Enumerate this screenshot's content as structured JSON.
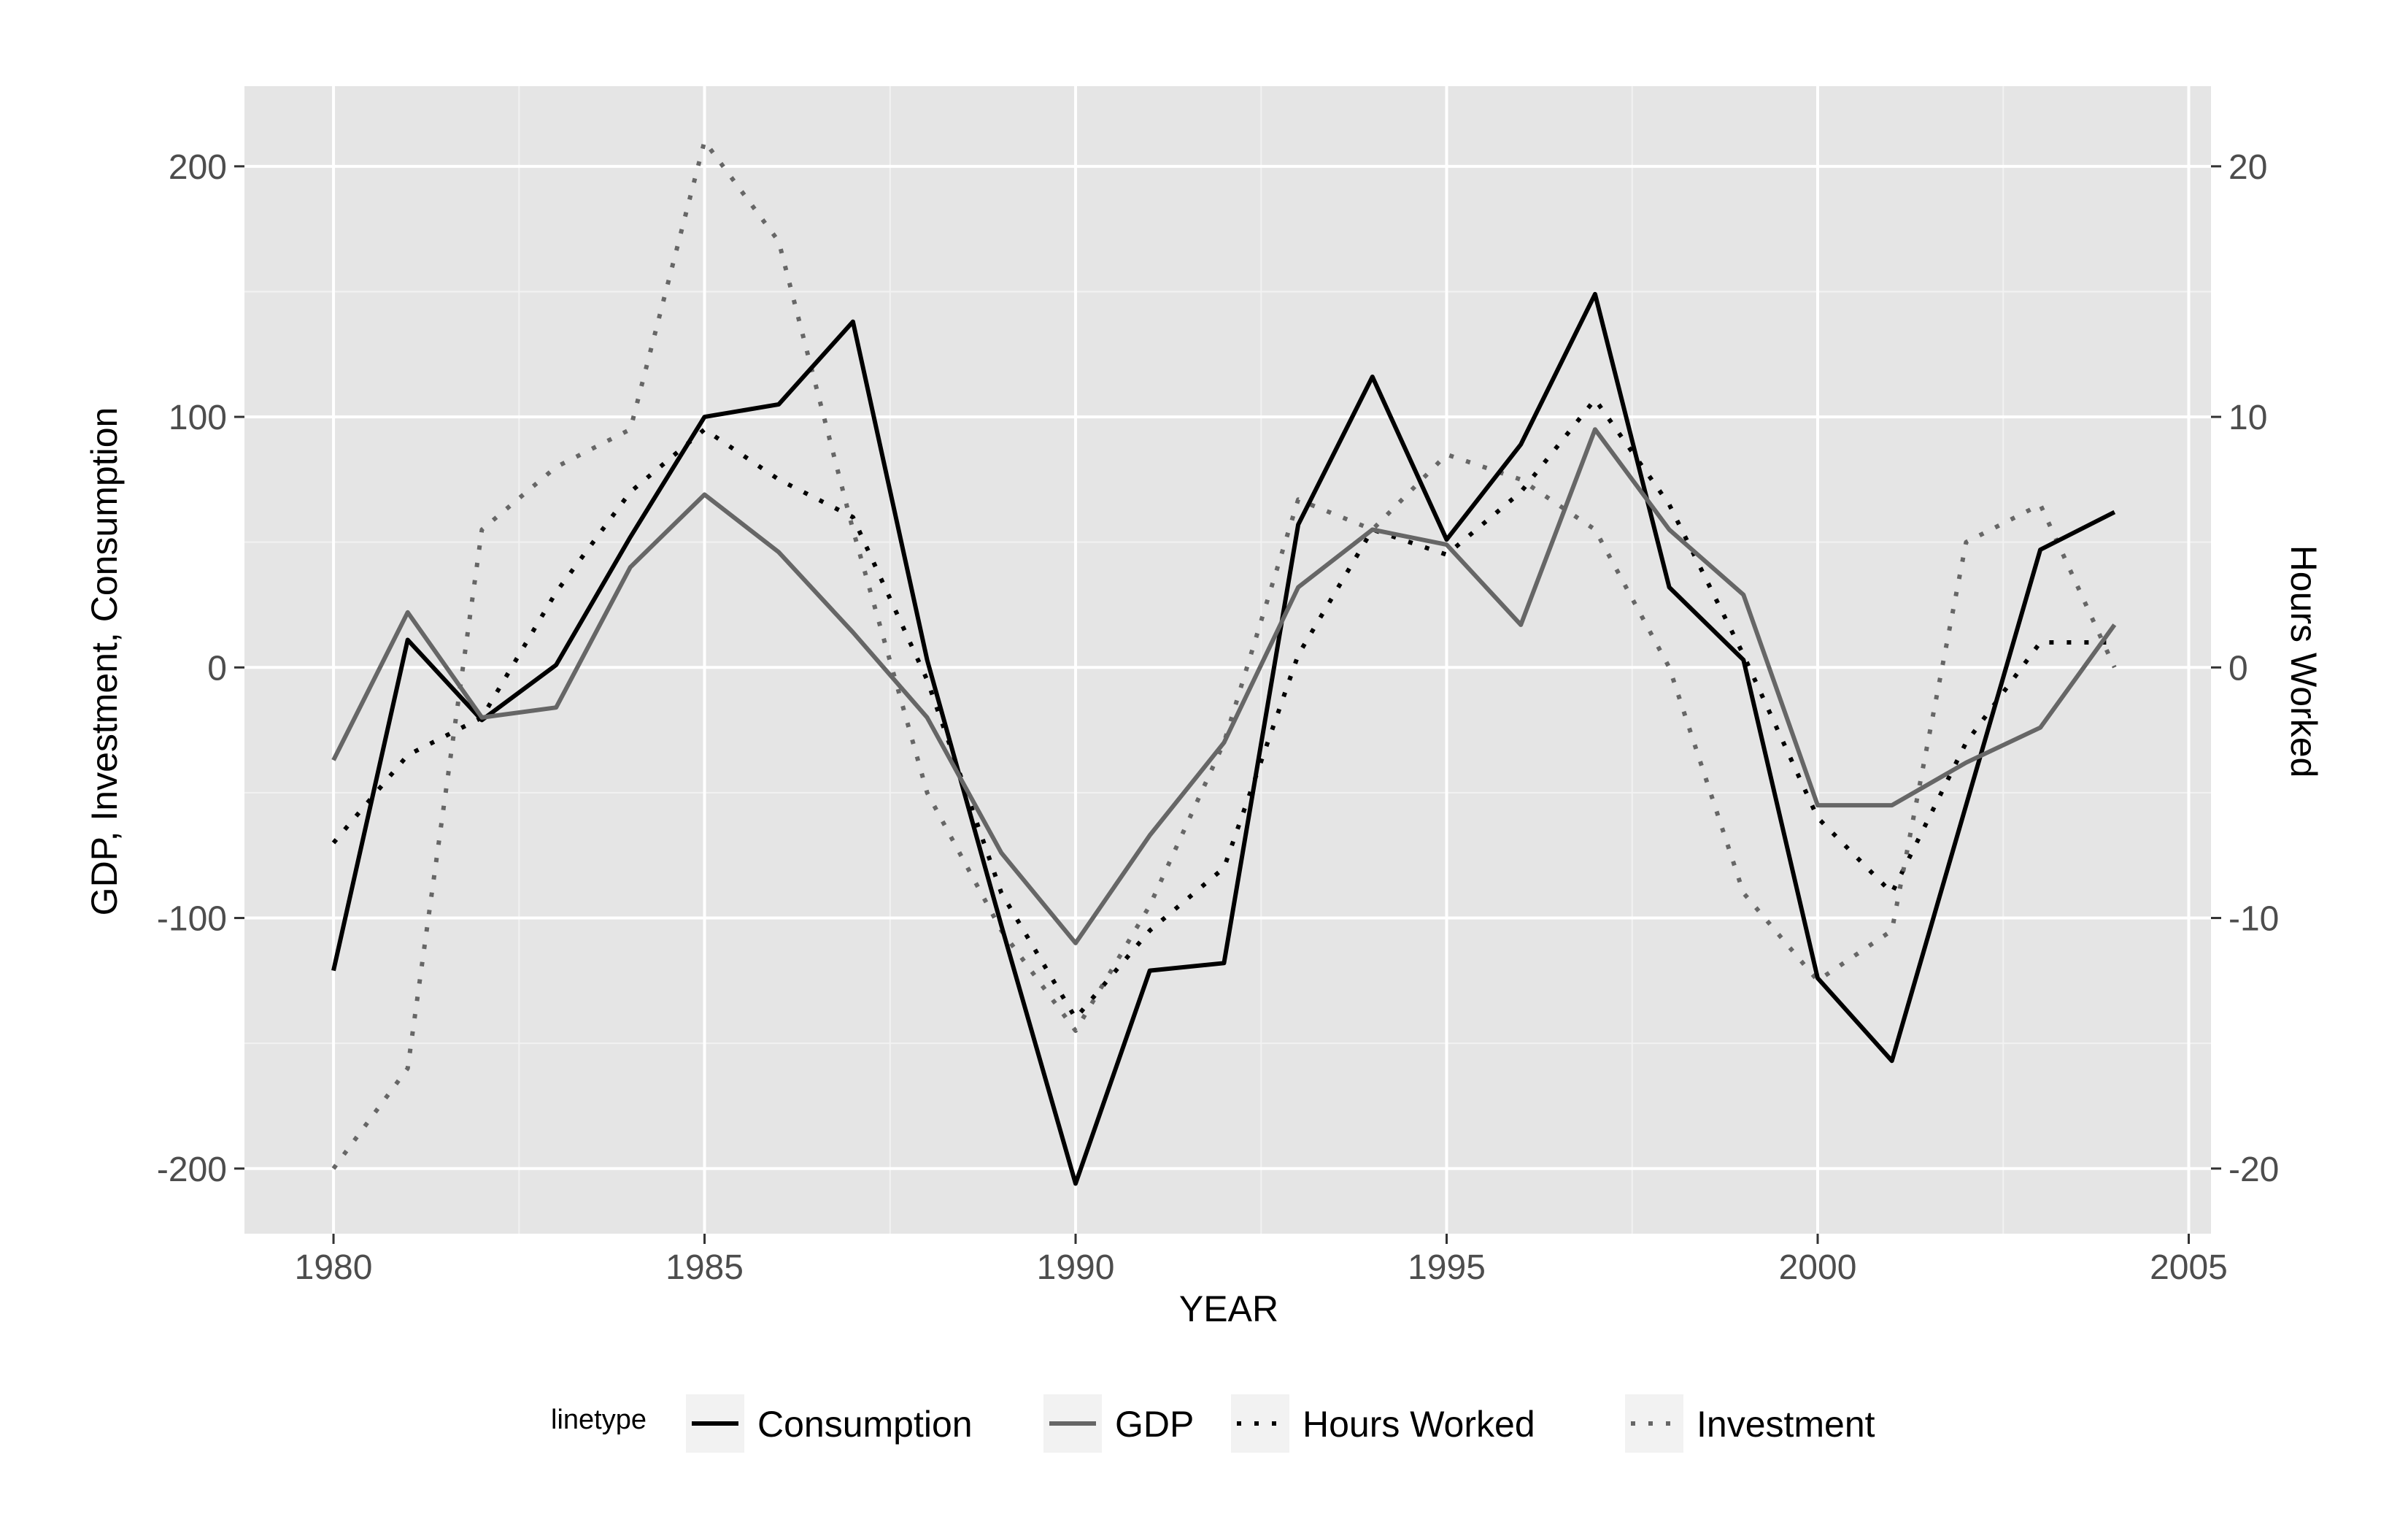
{
  "chart_data": {
    "type": "line",
    "title": "",
    "xlabel": "YEAR",
    "ylabel_left": "GDP, Investment, Consumption",
    "ylabel_right": "Hours Worked",
    "xlim": [
      1978.8,
      2005.3
    ],
    "ylim_left": [
      -226,
      232
    ],
    "ylim_right": [
      -22.6,
      23.2
    ],
    "x_ticks": [
      1980,
      1985,
      1990,
      1995,
      2000,
      2005
    ],
    "y_left_ticks": [
      -200,
      -100,
      0,
      100,
      200
    ],
    "y_right_ticks": [
      -20,
      -10,
      0,
      10,
      20
    ],
    "grid": true,
    "panel_background": "#e5e5e5",
    "legend": {
      "position": "bottom",
      "title": "linetype",
      "entries": [
        "Consumption",
        "GDP",
        "Hours Worked",
        "Investment"
      ]
    },
    "x": [
      1980,
      1981,
      1982,
      1983,
      1984,
      1985,
      1986,
      1987,
      1988,
      1989,
      1990,
      1991,
      1992,
      1993,
      1994,
      1995,
      1996,
      1997,
      1998,
      1999,
      2000,
      2001,
      2002,
      2003,
      2004
    ],
    "series": [
      {
        "name": "Consumption",
        "axis": "left",
        "style": "solid",
        "color": "#000000",
        "values": [
          -121,
          11,
          -21,
          1,
          52,
          100,
          105,
          138,
          3,
          -103,
          -206,
          -121,
          -118,
          57,
          116,
          51,
          89,
          149,
          32,
          3,
          -124,
          -157,
          -55,
          47,
          62
        ]
      },
      {
        "name": "GDP",
        "axis": "left",
        "style": "solid",
        "color": "#666666",
        "values": [
          -37,
          22,
          -20,
          -16,
          40,
          69,
          46,
          14,
          -20,
          -74,
          -110,
          -67,
          -30,
          32,
          55,
          49,
          17,
          95,
          55,
          29,
          -55,
          -55,
          -38,
          -24,
          17
        ]
      },
      {
        "name": "Hours Worked",
        "axis": "right",
        "style": "dotted",
        "color": "#000000",
        "values": [
          -7,
          -3.5,
          -2,
          3,
          7,
          9.5,
          7.5,
          6,
          -0.5,
          -9,
          -14,
          -10.5,
          -8,
          0.5,
          5.5,
          4.5,
          7,
          10.7,
          6.5,
          0.5,
          -6,
          -9,
          -3,
          1,
          1
        ]
      },
      {
        "name": "Investment",
        "axis": "right",
        "style": "dotted",
        "color": "#666666",
        "values": [
          -20,
          -16,
          5.5,
          8,
          9.5,
          21,
          17,
          5.5,
          -5,
          -10.5,
          -14.5,
          -9.5,
          -3,
          6.7,
          5.5,
          8.5,
          7.5,
          5.5,
          0,
          -9,
          -12.5,
          -10.5,
          5,
          6.5,
          0
        ]
      }
    ]
  }
}
